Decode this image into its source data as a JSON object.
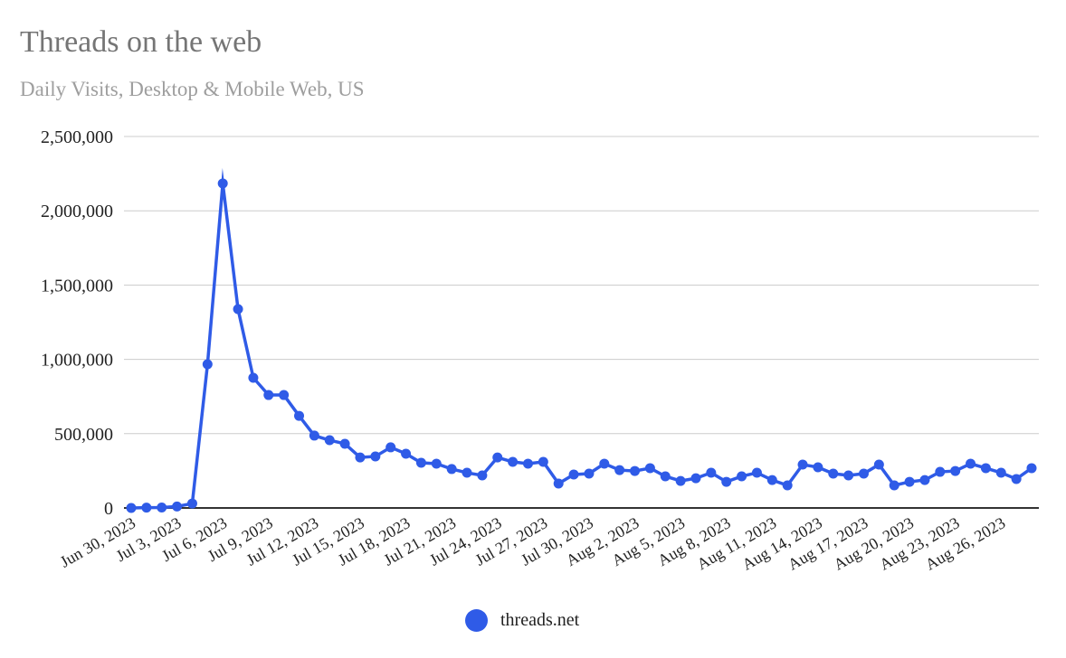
{
  "chart_data": {
    "type": "line",
    "title": "Threads on the web",
    "subtitle": "Daily Visits, Desktop & Mobile Web, US",
    "xlabel": "",
    "ylabel": "",
    "ylim": [
      0,
      2500000
    ],
    "yticks": [
      0,
      500000,
      1000000,
      1500000,
      2000000,
      2500000
    ],
    "ytick_labels": [
      "0",
      "500,000",
      "1,000,000",
      "1,500,000",
      "2,000,000",
      "2,500,000"
    ],
    "xtick_labels": [
      "Jun 30, 2023",
      "Jul 3, 2023",
      "Jul 6, 2023",
      "Jul 9, 2023",
      "Jul 12, 2023",
      "Jul 15, 2023",
      "Jul 18, 2023",
      "Jul 21, 2023",
      "Jul 24, 2023",
      "Jul 27, 2023",
      "Jul 30, 2023",
      "Aug 2, 2023",
      "Aug 5, 2023",
      "Aug 8, 2023",
      "Aug 11, 2023",
      "Aug 14, 2023",
      "Aug 17, 2023",
      "Aug 20, 2023",
      "Aug 23, 2023",
      "Aug 26, 2023"
    ],
    "xtick_every_n_days": 3,
    "x_start": "Jun 30, 2023",
    "x_end": "Aug 28, 2023",
    "grid": true,
    "legend_position": "bottom",
    "series": [
      {
        "name": "threads.net",
        "color": "#2f5be7",
        "values": [
          0,
          2000,
          3000,
          10000,
          30000,
          967000,
          2184000,
          1338000,
          876000,
          760000,
          760000,
          620000,
          487000,
          456000,
          432000,
          340000,
          347000,
          408000,
          365000,
          304000,
          298000,
          262000,
          237000,
          219000,
          340000,
          310000,
          298000,
          310000,
          164000,
          225000,
          231000,
          298000,
          255000,
          249000,
          268000,
          213000,
          182000,
          200000,
          237000,
          176000,
          213000,
          237000,
          188000,
          152000,
          292000,
          274000,
          231000,
          219000,
          231000,
          292000,
          152000,
          176000,
          188000,
          243000,
          249000,
          298000,
          268000,
          237000,
          195000,
          268000
        ]
      }
    ]
  }
}
